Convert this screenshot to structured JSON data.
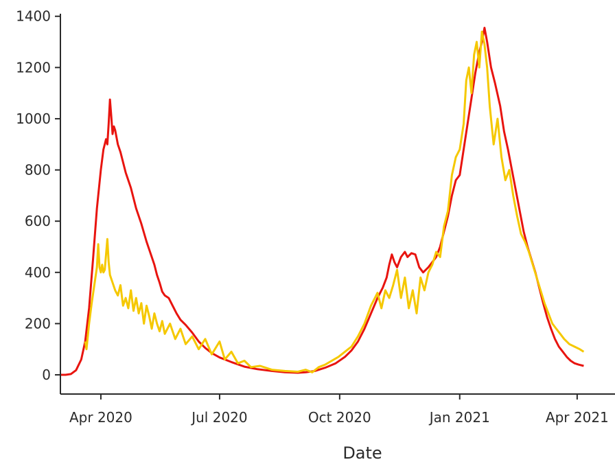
{
  "chart_data": {
    "type": "line",
    "title": "",
    "xlabel": "Date",
    "ylabel": "",
    "x_type": "date",
    "xlim": [
      "2020-03-01",
      "2021-04-30"
    ],
    "ylim": [
      -75,
      1410
    ],
    "grid": false,
    "legend": "none",
    "x_ticks": [
      {
        "date": "2020-04-01",
        "label": "Apr 2020"
      },
      {
        "date": "2020-07-01",
        "label": "Jul 2020"
      },
      {
        "date": "2020-10-01",
        "label": "Oct 2020"
      },
      {
        "date": "2021-01-01",
        "label": "Jan 2021"
      },
      {
        "date": "2021-04-01",
        "label": "Apr 2021"
      }
    ],
    "y_ticks": [
      {
        "value": 0,
        "label": "0"
      },
      {
        "value": 200,
        "label": "200"
      },
      {
        "value": 400,
        "label": "400"
      },
      {
        "value": 600,
        "label": "600"
      },
      {
        "value": 800,
        "label": "800"
      },
      {
        "value": 1000,
        "label": "1000"
      },
      {
        "value": 1200,
        "label": "1200"
      },
      {
        "value": 1400,
        "label": "1400"
      }
    ],
    "series": [
      {
        "color": "#e8140f",
        "points": [
          [
            "2020-03-01",
            0
          ],
          [
            "2020-03-05",
            0
          ],
          [
            "2020-03-09",
            3
          ],
          [
            "2020-03-13",
            18
          ],
          [
            "2020-03-17",
            60
          ],
          [
            "2020-03-20",
            130
          ],
          [
            "2020-03-23",
            260
          ],
          [
            "2020-03-26",
            450
          ],
          [
            "2020-03-29",
            650
          ],
          [
            "2020-04-01",
            800
          ],
          [
            "2020-04-03",
            880
          ],
          [
            "2020-04-05",
            920
          ],
          [
            "2020-04-06",
            900
          ],
          [
            "2020-04-07",
            980
          ],
          [
            "2020-04-08",
            1075
          ],
          [
            "2020-04-09",
            1010
          ],
          [
            "2020-04-10",
            940
          ],
          [
            "2020-04-11",
            970
          ],
          [
            "2020-04-12",
            955
          ],
          [
            "2020-04-14",
            900
          ],
          [
            "2020-04-16",
            870
          ],
          [
            "2020-04-18",
            830
          ],
          [
            "2020-04-20",
            790
          ],
          [
            "2020-04-22",
            760
          ],
          [
            "2020-04-24",
            730
          ],
          [
            "2020-04-26",
            690
          ],
          [
            "2020-04-28",
            650
          ],
          [
            "2020-04-30",
            620
          ],
          [
            "2020-05-02",
            590
          ],
          [
            "2020-05-04",
            555
          ],
          [
            "2020-05-06",
            520
          ],
          [
            "2020-05-08",
            490
          ],
          [
            "2020-05-10",
            460
          ],
          [
            "2020-05-12",
            430
          ],
          [
            "2020-05-14",
            390
          ],
          [
            "2020-05-16",
            360
          ],
          [
            "2020-05-18",
            325
          ],
          [
            "2020-05-20",
            310
          ],
          [
            "2020-05-23",
            300
          ],
          [
            "2020-05-26",
            270
          ],
          [
            "2020-05-29",
            240
          ],
          [
            "2020-06-01",
            215
          ],
          [
            "2020-06-05",
            195
          ],
          [
            "2020-06-10",
            165
          ],
          [
            "2020-06-15",
            130
          ],
          [
            "2020-06-20",
            105
          ],
          [
            "2020-06-25",
            85
          ],
          [
            "2020-07-01",
            68
          ],
          [
            "2020-07-10",
            50
          ],
          [
            "2020-07-20",
            32
          ],
          [
            "2020-07-30",
            22
          ],
          [
            "2020-08-10",
            15
          ],
          [
            "2020-08-20",
            10
          ],
          [
            "2020-08-30",
            8
          ],
          [
            "2020-09-05",
            10
          ],
          [
            "2020-09-12",
            15
          ],
          [
            "2020-09-20",
            28
          ],
          [
            "2020-09-28",
            45
          ],
          [
            "2020-10-05",
            70
          ],
          [
            "2020-10-10",
            95
          ],
          [
            "2020-10-15",
            130
          ],
          [
            "2020-10-20",
            180
          ],
          [
            "2020-10-25",
            240
          ],
          [
            "2020-10-30",
            300
          ],
          [
            "2020-11-03",
            340
          ],
          [
            "2020-11-06",
            380
          ],
          [
            "2020-11-08",
            430
          ],
          [
            "2020-11-10",
            470
          ],
          [
            "2020-11-12",
            440
          ],
          [
            "2020-11-14",
            420
          ],
          [
            "2020-11-17",
            460
          ],
          [
            "2020-11-20",
            480
          ],
          [
            "2020-11-22",
            460
          ],
          [
            "2020-11-25",
            475
          ],
          [
            "2020-11-28",
            470
          ],
          [
            "2020-12-01",
            420
          ],
          [
            "2020-12-04",
            400
          ],
          [
            "2020-12-08",
            420
          ],
          [
            "2020-12-11",
            440
          ],
          [
            "2020-12-14",
            460
          ],
          [
            "2020-12-17",
            500
          ],
          [
            "2020-12-20",
            560
          ],
          [
            "2020-12-23",
            620
          ],
          [
            "2020-12-26",
            700
          ],
          [
            "2020-12-29",
            760
          ],
          [
            "2021-01-01",
            780
          ],
          [
            "2021-01-04",
            880
          ],
          [
            "2021-01-07",
            980
          ],
          [
            "2021-01-10",
            1080
          ],
          [
            "2021-01-13",
            1180
          ],
          [
            "2021-01-16",
            1260
          ],
          [
            "2021-01-18",
            1300
          ],
          [
            "2021-01-20",
            1355
          ],
          [
            "2021-01-22",
            1300
          ],
          [
            "2021-01-25",
            1200
          ],
          [
            "2021-01-28",
            1140
          ],
          [
            "2021-02-01",
            1050
          ],
          [
            "2021-02-04",
            950
          ],
          [
            "2021-02-07",
            880
          ],
          [
            "2021-02-10",
            800
          ],
          [
            "2021-02-13",
            720
          ],
          [
            "2021-02-16",
            640
          ],
          [
            "2021-02-19",
            560
          ],
          [
            "2021-02-22",
            500
          ],
          [
            "2021-02-25",
            450
          ],
          [
            "2021-02-28",
            400
          ],
          [
            "2021-03-03",
            340
          ],
          [
            "2021-03-06",
            280
          ],
          [
            "2021-03-09",
            225
          ],
          [
            "2021-03-12",
            180
          ],
          [
            "2021-03-15",
            140
          ],
          [
            "2021-03-18",
            110
          ],
          [
            "2021-03-21",
            90
          ],
          [
            "2021-03-24",
            70
          ],
          [
            "2021-03-27",
            55
          ],
          [
            "2021-03-30",
            45
          ],
          [
            "2021-04-02",
            40
          ],
          [
            "2021-04-06",
            35
          ]
        ]
      },
      {
        "color": "#f5c800",
        "points": [
          [
            "2020-03-20",
            130
          ],
          [
            "2020-03-21",
            100
          ],
          [
            "2020-03-23",
            200
          ],
          [
            "2020-03-25",
            280
          ],
          [
            "2020-03-27",
            350
          ],
          [
            "2020-03-29",
            420
          ],
          [
            "2020-03-30",
            510
          ],
          [
            "2020-03-31",
            420
          ],
          [
            "2020-04-01",
            400
          ],
          [
            "2020-04-02",
            430
          ],
          [
            "2020-04-03",
            400
          ],
          [
            "2020-04-04",
            410
          ],
          [
            "2020-04-05",
            470
          ],
          [
            "2020-04-06",
            530
          ],
          [
            "2020-04-07",
            440
          ],
          [
            "2020-04-08",
            390
          ],
          [
            "2020-04-10",
            360
          ],
          [
            "2020-04-12",
            330
          ],
          [
            "2020-04-14",
            310
          ],
          [
            "2020-04-16",
            350
          ],
          [
            "2020-04-18",
            270
          ],
          [
            "2020-04-20",
            300
          ],
          [
            "2020-04-22",
            260
          ],
          [
            "2020-04-24",
            330
          ],
          [
            "2020-04-26",
            250
          ],
          [
            "2020-04-28",
            300
          ],
          [
            "2020-04-30",
            240
          ],
          [
            "2020-05-02",
            280
          ],
          [
            "2020-05-04",
            200
          ],
          [
            "2020-05-06",
            270
          ],
          [
            "2020-05-08",
            230
          ],
          [
            "2020-05-10",
            180
          ],
          [
            "2020-05-12",
            240
          ],
          [
            "2020-05-14",
            200
          ],
          [
            "2020-05-16",
            170
          ],
          [
            "2020-05-18",
            210
          ],
          [
            "2020-05-20",
            160
          ],
          [
            "2020-05-24",
            200
          ],
          [
            "2020-05-28",
            140
          ],
          [
            "2020-06-01",
            180
          ],
          [
            "2020-06-05",
            120
          ],
          [
            "2020-06-10",
            150
          ],
          [
            "2020-06-15",
            100
          ],
          [
            "2020-06-20",
            140
          ],
          [
            "2020-06-25",
            80
          ],
          [
            "2020-07-01",
            130
          ],
          [
            "2020-07-05",
            60
          ],
          [
            "2020-07-10",
            90
          ],
          [
            "2020-07-15",
            45
          ],
          [
            "2020-07-20",
            55
          ],
          [
            "2020-07-25",
            30
          ],
          [
            "2020-08-01",
            35
          ],
          [
            "2020-08-10",
            20
          ],
          [
            "2020-08-20",
            15
          ],
          [
            "2020-08-30",
            12
          ],
          [
            "2020-09-05",
            20
          ],
          [
            "2020-09-10",
            10
          ],
          [
            "2020-09-15",
            30
          ],
          [
            "2020-09-20",
            40
          ],
          [
            "2020-09-25",
            55
          ],
          [
            "2020-09-30",
            70
          ],
          [
            "2020-10-05",
            90
          ],
          [
            "2020-10-10",
            110
          ],
          [
            "2020-10-15",
            150
          ],
          [
            "2020-10-20",
            200
          ],
          [
            "2020-10-25",
            270
          ],
          [
            "2020-10-30",
            320
          ],
          [
            "2020-11-02",
            260
          ],
          [
            "2020-11-05",
            330
          ],
          [
            "2020-11-08",
            300
          ],
          [
            "2020-11-11",
            350
          ],
          [
            "2020-11-14",
            410
          ],
          [
            "2020-11-17",
            300
          ],
          [
            "2020-11-20",
            380
          ],
          [
            "2020-11-23",
            260
          ],
          [
            "2020-11-26",
            330
          ],
          [
            "2020-11-29",
            240
          ],
          [
            "2020-12-02",
            380
          ],
          [
            "2020-12-05",
            330
          ],
          [
            "2020-12-08",
            400
          ],
          [
            "2020-12-11",
            430
          ],
          [
            "2020-12-14",
            480
          ],
          [
            "2020-12-17",
            460
          ],
          [
            "2020-12-20",
            580
          ],
          [
            "2020-12-23",
            640
          ],
          [
            "2020-12-26",
            780
          ],
          [
            "2020-12-29",
            850
          ],
          [
            "2021-01-01",
            880
          ],
          [
            "2021-01-04",
            980
          ],
          [
            "2021-01-06",
            1150
          ],
          [
            "2021-01-08",
            1200
          ],
          [
            "2021-01-10",
            1100
          ],
          [
            "2021-01-12",
            1250
          ],
          [
            "2021-01-14",
            1300
          ],
          [
            "2021-01-16",
            1200
          ],
          [
            "2021-01-18",
            1340
          ],
          [
            "2021-01-20",
            1290
          ],
          [
            "2021-01-22",
            1200
          ],
          [
            "2021-01-24",
            1050
          ],
          [
            "2021-01-27",
            900
          ],
          [
            "2021-01-30",
            1000
          ],
          [
            "2021-02-02",
            850
          ],
          [
            "2021-02-05",
            760
          ],
          [
            "2021-02-08",
            800
          ],
          [
            "2021-02-11",
            700
          ],
          [
            "2021-02-14",
            620
          ],
          [
            "2021-02-17",
            550
          ],
          [
            "2021-02-20",
            520
          ],
          [
            "2021-02-23",
            480
          ],
          [
            "2021-02-26",
            430
          ],
          [
            "2021-03-01",
            380
          ],
          [
            "2021-03-04",
            330
          ],
          [
            "2021-03-07",
            280
          ],
          [
            "2021-03-10",
            240
          ],
          [
            "2021-03-13",
            200
          ],
          [
            "2021-03-16",
            180
          ],
          [
            "2021-03-19",
            160
          ],
          [
            "2021-03-22",
            140
          ],
          [
            "2021-03-26",
            120
          ],
          [
            "2021-03-30",
            110
          ],
          [
            "2021-04-03",
            100
          ],
          [
            "2021-04-06",
            90
          ]
        ]
      }
    ]
  }
}
